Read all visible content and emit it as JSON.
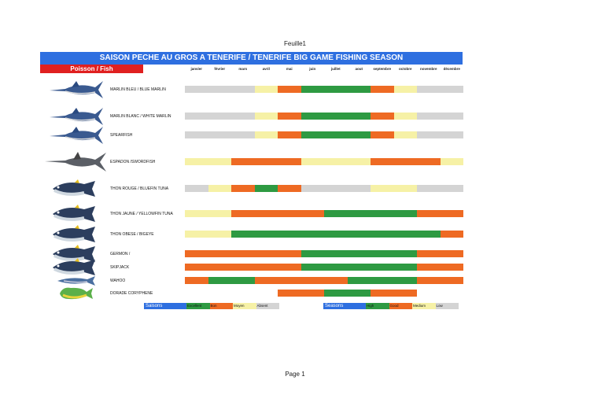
{
  "sheet_title": "Feuille1",
  "footer": "Page 1",
  "banner": "SAISON PECHE AU GROS A TENERIFE  / TENERIFE BIG GAME FISHING SEASON",
  "fish_header": "Poisson / Fish",
  "months": [
    "janvier",
    "février",
    "mars",
    "avril",
    "mai",
    "juin",
    "juillet",
    "aout",
    "septembre",
    "octobre",
    "novembre",
    "décembre"
  ],
  "colors": {
    "E": "#2e9a42",
    "G": "#ee6a23",
    "M": "#f6f1a6",
    "A": "#d4d4d4",
    "W": "#ffffff"
  },
  "rows": [
    {
      "name": "MARLIN BLEU / BLUE MARLIN",
      "fish": "marlin-icon",
      "months": "AAAMGEEEGMAA"
    },
    {
      "name": "MARLIN BLANC / WHITE MARLIN",
      "fish": "marlin-icon",
      "months": "AAAMGEEEGMAA"
    },
    {
      "name": "SPEARFISH",
      "fish": "marlin-icon",
      "months": "AAAMGEEEGMAA"
    },
    {
      "name": "ESPADON /SWORDFISH",
      "fish": "swordfish-icon",
      "months": "MMGGGMMMGGGM"
    },
    {
      "name": "THON ROUGE / BLUEFIN TUNA",
      "fish": "tuna-icon",
      "months": "AMGEGAAAMMAA"
    },
    {
      "name": "THON JAUNE / YELLOWFIN TUNA",
      "fish": "tuna-icon",
      "months": "MMGGGGEEEEGG"
    },
    {
      "name": "THON OBESE / BIGEYE",
      "fish": "tuna-icon",
      "months": "MMEEEEEEEEEG"
    },
    {
      "name": "GERMON /",
      "fish": "tuna-icon",
      "months": "GGGGGEEEEEGG"
    },
    {
      "name": "SKIPJACK",
      "fish": "tuna-icon",
      "months": "GGGGGEEEEEGG"
    },
    {
      "name": "WAHOO",
      "fish": "wahoo-icon",
      "months": "GEEGGGGEEEGG"
    },
    {
      "name": "DORADE CORYPHENE",
      "fish": "dorado-icon",
      "months": "WWWWGGEEGGWW"
    }
  ],
  "legend_fr": {
    "title": "Saisons",
    "items": [
      {
        "label": "Excellent",
        "key": "E"
      },
      {
        "label": "Bon",
        "key": "G"
      },
      {
        "label": "Moyen",
        "key": "M"
      },
      {
        "label": "Absent",
        "key": "A"
      }
    ]
  },
  "legend_en": {
    "title": "Seasons",
    "items": [
      {
        "label": "High",
        "key": "E"
      },
      {
        "label": "Good",
        "key": "G"
      },
      {
        "label": "Medium",
        "key": "M"
      },
      {
        "label": "Low",
        "key": "A"
      }
    ]
  }
}
